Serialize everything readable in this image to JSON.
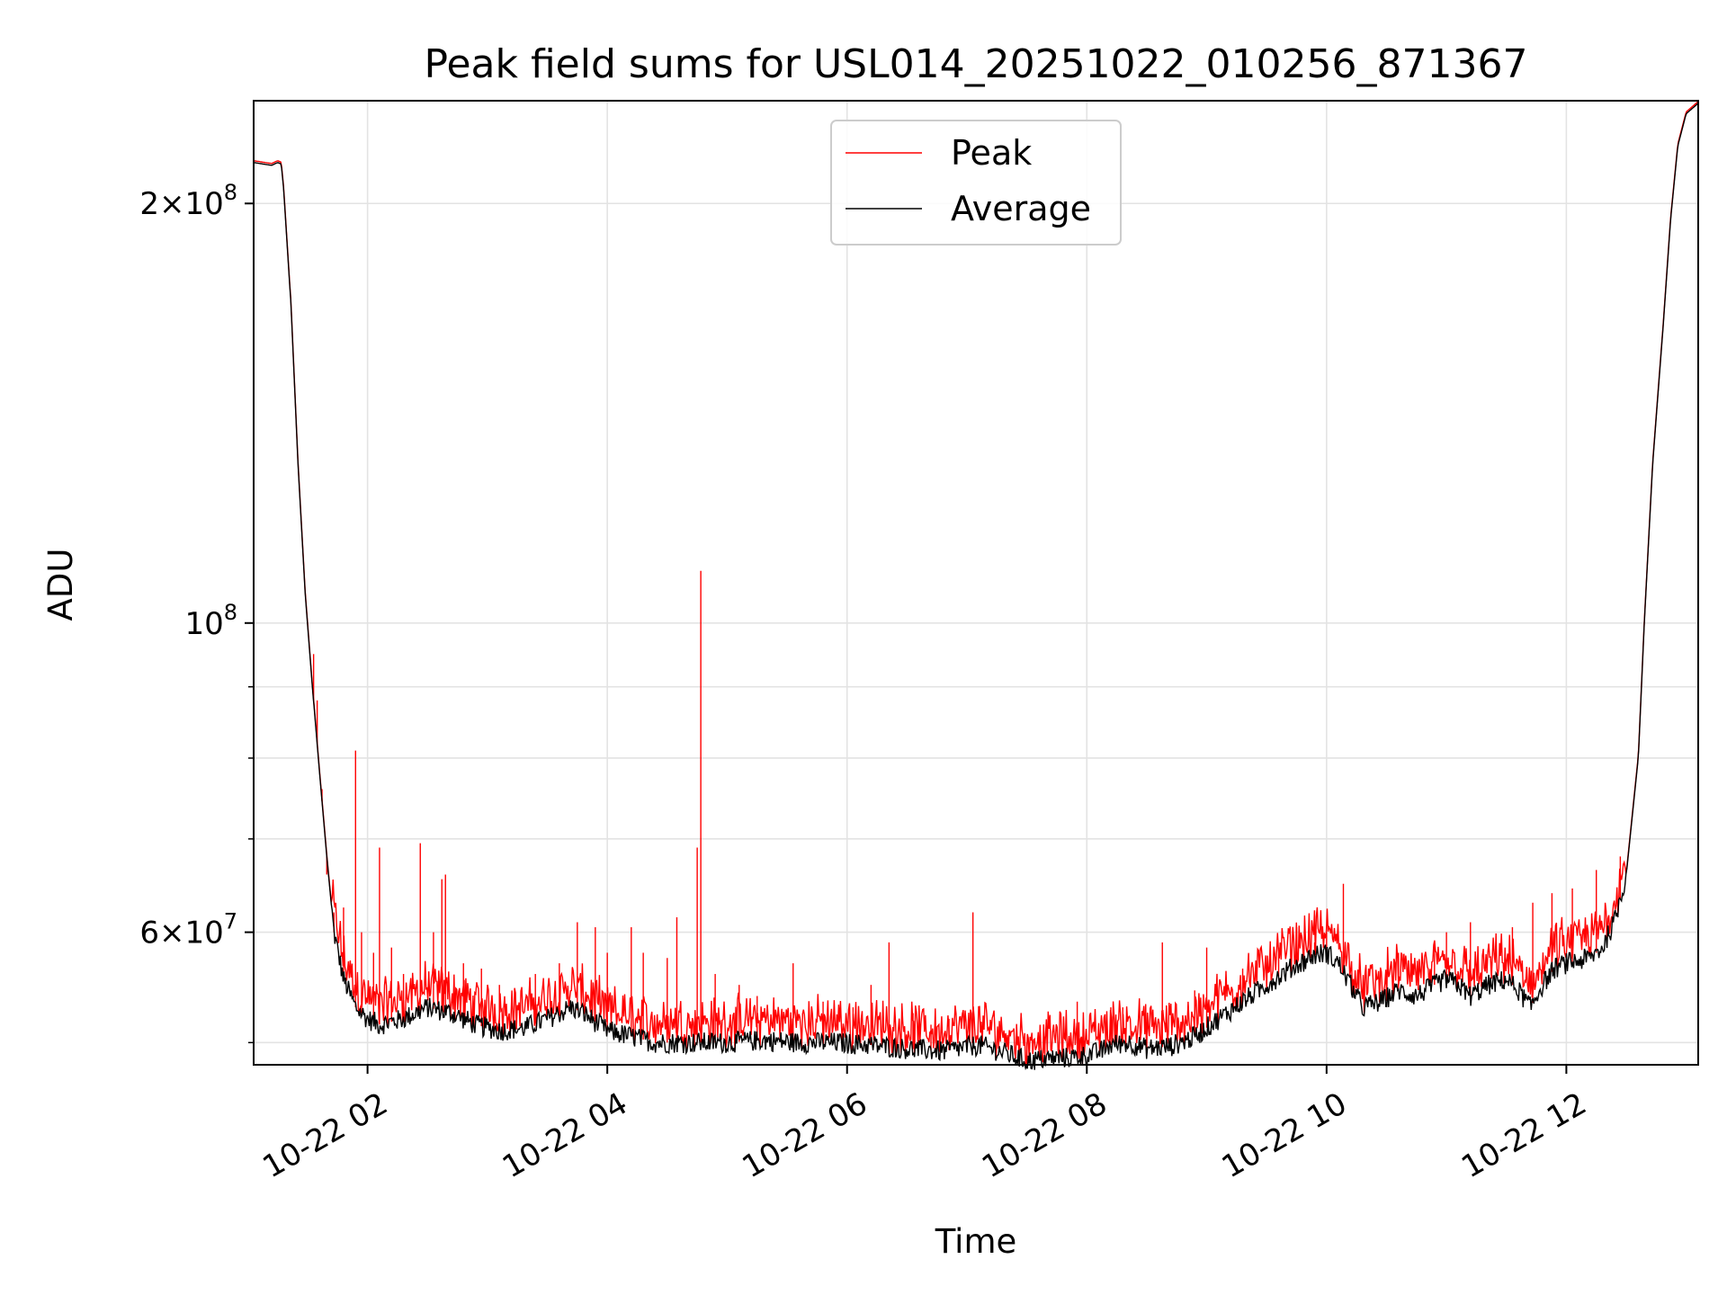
{
  "chart_data": {
    "type": "line",
    "title": "Peak field sums for USL014_20251022_010256_871367",
    "xlabel": "Time",
    "ylabel": "ADU",
    "yscale": "log",
    "xlim": [
      1.05,
      13.1
    ],
    "ylim": [
      48200000,
      237000000
    ],
    "grid": true,
    "legend_position": "upper-center",
    "x_ticks": [
      {
        "value": 2,
        "label": "10-22 02"
      },
      {
        "value": 4,
        "label": "10-22 04"
      },
      {
        "value": 6,
        "label": "10-22 06"
      },
      {
        "value": 8,
        "label": "10-22 08"
      },
      {
        "value": 10,
        "label": "10-22 10"
      },
      {
        "value": 12,
        "label": "10-22 12"
      }
    ],
    "y_major_ticks": [
      {
        "value": 200000000,
        "mantissa": "2",
        "exponent": "8"
      },
      {
        "value": 100000000,
        "mantissa": "",
        "exponent": "8"
      },
      {
        "value": 60000000,
        "mantissa": "6",
        "exponent": "7"
      }
    ],
    "y_minor_ticks": [
      50000000,
      70000000,
      80000000,
      90000000
    ],
    "series": [
      {
        "name": "Peak",
        "color": "#ff0000",
        "spikes": [
          [
            1.55,
            95000000
          ],
          [
            1.58,
            88000000
          ],
          [
            1.62,
            76000000
          ],
          [
            1.66,
            66000000
          ],
          [
            1.72,
            62000000
          ],
          [
            1.8,
            62500000
          ],
          [
            1.9,
            81000000
          ],
          [
            1.95,
            60000000
          ],
          [
            2.05,
            58000000
          ],
          [
            2.1,
            69000000
          ],
          [
            2.2,
            58500000
          ],
          [
            2.3,
            56000000
          ],
          [
            2.44,
            69500000
          ],
          [
            2.55,
            60000000
          ],
          [
            2.62,
            65500000
          ],
          [
            2.65,
            66000000
          ],
          [
            2.8,
            57000000
          ],
          [
            2.95,
            56500000
          ],
          [
            3.1,
            55000000
          ],
          [
            3.4,
            56000000
          ],
          [
            3.6,
            57000000
          ],
          [
            3.75,
            61000000
          ],
          [
            3.9,
            60500000
          ],
          [
            4.0,
            58000000
          ],
          [
            4.2,
            60500000
          ],
          [
            4.3,
            58000000
          ],
          [
            4.5,
            57500000
          ],
          [
            4.58,
            61500000
          ],
          [
            4.75,
            69000000
          ],
          [
            4.78,
            109000000
          ],
          [
            4.9,
            56000000
          ],
          [
            5.1,
            55000000
          ],
          [
            5.25,
            54000000
          ],
          [
            5.55,
            57000000
          ],
          [
            5.8,
            53500000
          ],
          [
            6.05,
            53000000
          ],
          [
            6.2,
            55000000
          ],
          [
            6.35,
            59000000
          ],
          [
            6.55,
            52500000
          ],
          [
            6.7,
            51500000
          ],
          [
            6.85,
            52000000
          ],
          [
            7.05,
            62000000
          ],
          [
            7.5,
            50000000
          ],
          [
            7.65,
            50500000
          ],
          [
            7.8,
            50000000
          ],
          [
            7.92,
            53500000
          ],
          [
            8.2,
            53000000
          ],
          [
            8.3,
            53000000
          ],
          [
            8.63,
            59000000
          ],
          [
            8.9,
            54500000
          ],
          [
            9.0,
            58500000
          ],
          [
            9.3,
            56500000
          ],
          [
            9.6,
            58500000
          ],
          [
            9.75,
            60500000
          ],
          [
            9.9,
            59000000
          ],
          [
            10.0,
            60000000
          ],
          [
            10.14,
            65000000
          ],
          [
            10.6,
            58000000
          ],
          [
            10.9,
            59000000
          ],
          [
            11.0,
            60000000
          ],
          [
            11.2,
            61000000
          ],
          [
            11.55,
            60500000
          ],
          [
            11.72,
            63000000
          ],
          [
            11.88,
            64000000
          ],
          [
            12.05,
            64500000
          ],
          [
            12.25,
            66500000
          ],
          [
            12.45,
            68000000
          ]
        ]
      },
      {
        "name": "Average",
        "color": "#000000",
        "values": [
          [
            1.05,
            214000000
          ],
          [
            1.2,
            213000000
          ],
          [
            1.25,
            214000000
          ],
          [
            1.28,
            213500000
          ],
          [
            1.3,
            205000000
          ],
          [
            1.36,
            170000000
          ],
          [
            1.42,
            130000000
          ],
          [
            1.48,
            105000000
          ],
          [
            1.54,
            90000000
          ],
          [
            1.6,
            78000000
          ],
          [
            1.66,
            68000000
          ],
          [
            1.72,
            60000000
          ],
          [
            1.8,
            55500000
          ],
          [
            1.9,
            53000000
          ],
          [
            2.0,
            52000000
          ],
          [
            2.1,
            51500000
          ],
          [
            2.3,
            52000000
          ],
          [
            2.5,
            53000000
          ],
          [
            2.7,
            52500000
          ],
          [
            2.9,
            51500000
          ],
          [
            3.1,
            51000000
          ],
          [
            3.3,
            51200000
          ],
          [
            3.5,
            52000000
          ],
          [
            3.7,
            53000000
          ],
          [
            3.8,
            52500000
          ],
          [
            4.0,
            51000000
          ],
          [
            4.2,
            50500000
          ],
          [
            4.4,
            50000000
          ],
          [
            4.7,
            50000000
          ],
          [
            5.0,
            50000000
          ],
          [
            5.3,
            50200000
          ],
          [
            5.6,
            50000000
          ],
          [
            5.9,
            50000000
          ],
          [
            6.2,
            49800000
          ],
          [
            6.5,
            49500000
          ],
          [
            6.8,
            49300000
          ],
          [
            7.1,
            49800000
          ],
          [
            7.3,
            49200000
          ],
          [
            7.5,
            48500000
          ],
          [
            7.7,
            48700000
          ],
          [
            7.9,
            48800000
          ],
          [
            8.1,
            49200000
          ],
          [
            8.2,
            49800000
          ],
          [
            8.35,
            50000000
          ],
          [
            8.5,
            49500000
          ],
          [
            8.7,
            49700000
          ],
          [
            8.9,
            50500000
          ],
          [
            9.1,
            52000000
          ],
          [
            9.3,
            53500000
          ],
          [
            9.5,
            55000000
          ],
          [
            9.7,
            56500000
          ],
          [
            9.9,
            57800000
          ],
          [
            10.0,
            58000000
          ],
          [
            10.1,
            57000000
          ],
          [
            10.2,
            55000000
          ],
          [
            10.3,
            53000000
          ],
          [
            10.45,
            53500000
          ],
          [
            10.6,
            54500000
          ],
          [
            10.75,
            54000000
          ],
          [
            10.9,
            55000000
          ],
          [
            11.0,
            55500000
          ],
          [
            11.1,
            55000000
          ],
          [
            11.2,
            54000000
          ],
          [
            11.35,
            55000000
          ],
          [
            11.5,
            55500000
          ],
          [
            11.6,
            54500000
          ],
          [
            11.7,
            53000000
          ],
          [
            11.8,
            55000000
          ],
          [
            11.9,
            56500000
          ],
          [
            12.0,
            57000000
          ],
          [
            12.2,
            57500000
          ],
          [
            12.3,
            58500000
          ],
          [
            12.4,
            61000000
          ],
          [
            12.5,
            66000000
          ],
          [
            12.6,
            80000000
          ],
          [
            12.65,
            100000000
          ],
          [
            12.72,
            130000000
          ],
          [
            12.8,
            160000000
          ],
          [
            12.87,
            195000000
          ],
          [
            12.93,
            220000000
          ],
          [
            13.0,
            232000000
          ],
          [
            13.1,
            236000000
          ]
        ]
      }
    ]
  }
}
